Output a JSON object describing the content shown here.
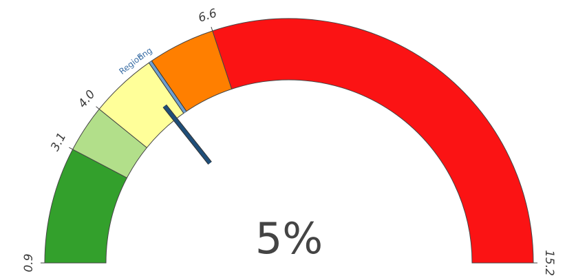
{
  "chart_data": {
    "type": "gauge",
    "min": 0.9,
    "max": 15.2,
    "value_text": "5%",
    "bands": [
      {
        "from": 0.9,
        "to": 3.1,
        "color": "#33a02c"
      },
      {
        "from": 3.1,
        "to": 4.0,
        "color": "#b2df8a"
      },
      {
        "from": 4.0,
        "to": 5.3,
        "color": "#ffff99"
      },
      {
        "from": 5.3,
        "to": 6.6,
        "color": "#ff7f00"
      },
      {
        "from": 6.6,
        "to": 15.2,
        "color": "#fb1314"
      }
    ],
    "ticks": [
      {
        "value": 0.9,
        "label": "0.9"
      },
      {
        "value": 3.1,
        "label": "3.1"
      },
      {
        "value": 4.0,
        "label": "4.0"
      },
      {
        "value": 6.6,
        "label": "6.6"
      },
      {
        "value": 15.2,
        "label": "15.2"
      }
    ],
    "markers": [
      {
        "value": 5.0,
        "label": "Region",
        "color": "#1f4e79",
        "kind": "needle"
      },
      {
        "value": 5.3,
        "label": "Eng",
        "color": "#6f9fd0",
        "kind": "band-line"
      }
    ]
  }
}
